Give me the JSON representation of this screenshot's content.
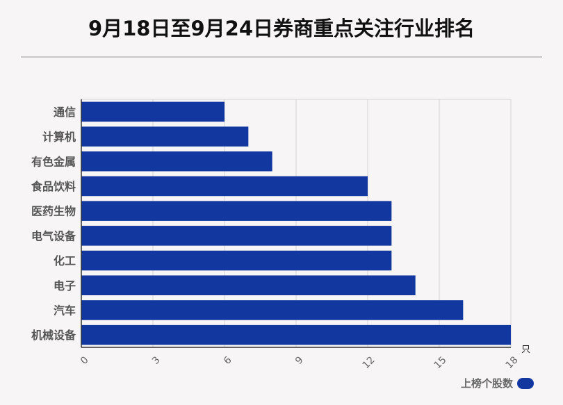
{
  "chart_data": {
    "type": "bar",
    "orientation": "horizontal",
    "title": "9月18日至9月24日券商重点关注行业排名",
    "categories": [
      "通信",
      "计算机",
      "有色金属",
      "食品饮料",
      "医药生物",
      "电气设备",
      "化工",
      "电子",
      "汽车",
      "机械设备"
    ],
    "series": [
      {
        "name": "上榜个股数",
        "values": [
          6,
          7,
          8,
          12,
          13,
          13,
          13,
          14,
          16,
          18
        ]
      }
    ],
    "xlim": [
      0,
      18
    ],
    "xticks": [
      "0",
      "3",
      "6",
      "9",
      "12",
      "15",
      "18"
    ],
    "x_unit": "只",
    "grid": true,
    "legend_position": "bottom-right",
    "color": "#1238a0"
  }
}
